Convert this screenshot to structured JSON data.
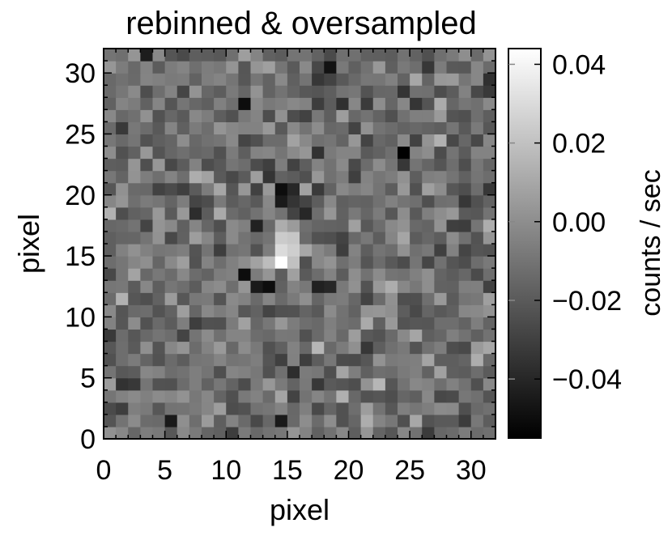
{
  "chart_data": {
    "type": "heatmap",
    "title": "rebinned & oversampled",
    "xlabel": "pixel",
    "ylabel": "pixel",
    "xlim": [
      0,
      32
    ],
    "ylim": [
      0,
      32
    ],
    "x_ticks": [
      "0",
      "5",
      "10",
      "15",
      "20",
      "25",
      "30"
    ],
    "y_ticks": [
      "0",
      "5",
      "10",
      "15",
      "20",
      "25",
      "30"
    ],
    "colormap": "grayscale",
    "colorbar": {
      "label": "counts / sec",
      "range": [
        -0.055,
        0.044
      ],
      "ticks": [
        "0.04",
        "0.02",
        "0.00",
        "−0.02",
        "−0.04"
      ],
      "tick_values": [
        0.04,
        0.02,
        0.0,
        -0.02,
        -0.04
      ]
    },
    "grid_size": [
      32,
      32
    ],
    "background": {
      "mean": -0.012,
      "sd": 0.01
    },
    "features": [
      {
        "x": 14,
        "y": 14,
        "value": 0.044
      },
      {
        "x": 15,
        "y": 14,
        "value": 0.02
      },
      {
        "x": 14,
        "y": 15,
        "value": 0.03
      },
      {
        "x": 15,
        "y": 15,
        "value": 0.025
      },
      {
        "x": 14,
        "y": 16,
        "value": 0.024
      },
      {
        "x": 15,
        "y": 16,
        "value": 0.022
      },
      {
        "x": 14,
        "y": 17,
        "value": 0.012
      },
      {
        "x": 15,
        "y": 17,
        "value": 0.005
      },
      {
        "x": 12,
        "y": 14,
        "value": 0.008
      },
      {
        "x": 13,
        "y": 14,
        "value": 0.018
      },
      {
        "x": 16,
        "y": 15,
        "value": 0.01
      },
      {
        "x": 16,
        "y": 13,
        "value": -0.02
      },
      {
        "x": 11,
        "y": 13,
        "value": -0.05
      },
      {
        "x": 12,
        "y": 12,
        "value": -0.045
      },
      {
        "x": 13,
        "y": 12,
        "value": -0.05
      },
      {
        "x": 14,
        "y": 20,
        "value": -0.05
      },
      {
        "x": 15,
        "y": 20,
        "value": -0.04
      },
      {
        "x": 14,
        "y": 19,
        "value": -0.045
      },
      {
        "x": 15,
        "y": 19,
        "value": -0.035
      },
      {
        "x": 16,
        "y": 18,
        "value": -0.04
      },
      {
        "x": 17,
        "y": 12,
        "value": -0.042
      },
      {
        "x": 18,
        "y": 12,
        "value": -0.04
      },
      {
        "x": 11,
        "y": 27,
        "value": -0.05
      },
      {
        "x": 24,
        "y": 23,
        "value": -0.055
      },
      {
        "x": 18,
        "y": 30,
        "value": -0.048
      },
      {
        "x": 12,
        "y": 17,
        "value": -0.042
      },
      {
        "x": 5,
        "y": 1,
        "value": -0.045
      },
      {
        "x": 14,
        "y": 1,
        "value": -0.045
      },
      {
        "x": 30,
        "y": 6,
        "value": 0.012
      },
      {
        "x": 31,
        "y": 7,
        "value": 0.01
      },
      {
        "x": 7,
        "y": 21,
        "value": 0.012
      },
      {
        "x": 8,
        "y": 21,
        "value": 0.008
      },
      {
        "x": 15,
        "y": 24,
        "value": 0.008
      },
      {
        "x": 20,
        "y": 8,
        "value": 0.006
      },
      {
        "x": 5,
        "y": 11,
        "value": 0.005
      },
      {
        "x": 21,
        "y": 2,
        "value": 0.006
      }
    ]
  }
}
